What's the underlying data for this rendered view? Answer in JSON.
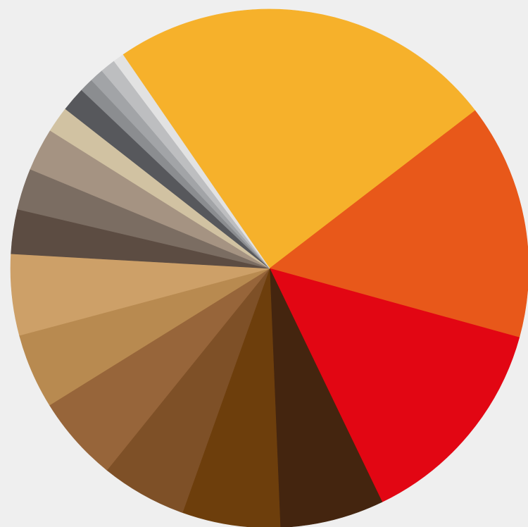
{
  "chart_data": {
    "type": "pie",
    "start_angle_deg": 124.5,
    "direction": "clockwise",
    "legend": "none",
    "grid": false,
    "slices": [
      {
        "value": 25.3,
        "color": "#f6b12b"
      },
      {
        "value": 15.4,
        "color": "#e8581a"
      },
      {
        "value": 14.2,
        "color": "#e20613"
      },
      {
        "value": 6.8,
        "color": "#44250f"
      },
      {
        "value": 6.4,
        "color": "#6d3e0c"
      },
      {
        "value": 5.6,
        "color": "#7e5027"
      },
      {
        "value": 5.6,
        "color": "#97653a"
      },
      {
        "value": 4.9,
        "color": "#b88a50"
      },
      {
        "value": 5.3,
        "color": "#cda068"
      },
      {
        "value": 2.9,
        "color": "#5c4c42"
      },
      {
        "value": 2.7,
        "color": "#7b6d62"
      },
      {
        "value": 2.8,
        "color": "#a59382"
      },
      {
        "value": 1.7,
        "color": "#d1c2a2"
      },
      {
        "value": 1.6,
        "color": "#57585c"
      },
      {
        "value": 0.9,
        "color": "#8b8d90"
      },
      {
        "value": 0.9,
        "color": "#a2a4a7"
      },
      {
        "value": 1.0,
        "color": "#bdbec0"
      },
      {
        "value": 0.7,
        "color": "#e2e2e2"
      }
    ]
  }
}
